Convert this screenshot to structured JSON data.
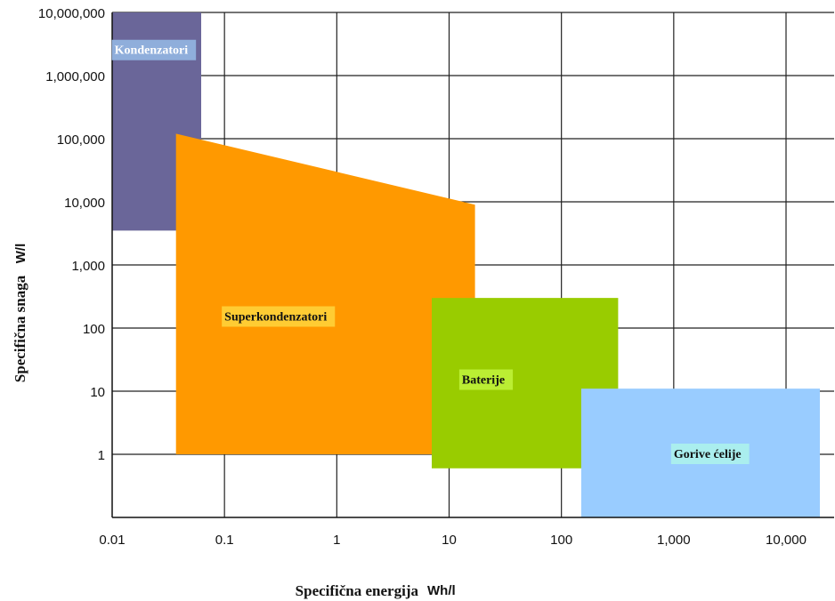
{
  "chart_data": {
    "type": "area",
    "xlabel": "Specifična energija",
    "xunit": "Wh/l",
    "ylabel": "Specifična snaga",
    "yunit": "W/l",
    "xscale": "log",
    "yscale": "log",
    "xlim": [
      0.01,
      10000
    ],
    "ylim": [
      0.1,
      10000000
    ],
    "grid": true,
    "x_ticks": [
      {
        "value": 0.01,
        "label": "0.01"
      },
      {
        "value": 0.1,
        "label": "0.1"
      },
      {
        "value": 1,
        "label": "1"
      },
      {
        "value": 10,
        "label": "10"
      },
      {
        "value": 100,
        "label": "100"
      },
      {
        "value": 1000,
        "label": "1,000"
      },
      {
        "value": 10000,
        "label": "10,000"
      }
    ],
    "y_ticks": [
      {
        "value": 1,
        "label": "1"
      },
      {
        "value": 10,
        "label": "10"
      },
      {
        "value": 100,
        "label": "100"
      },
      {
        "value": 1000,
        "label": "1,000"
      },
      {
        "value": 10000,
        "label": "10,000"
      },
      {
        "value": 100000,
        "label": "100,000"
      },
      {
        "value": 1000000,
        "label": "1,000,000"
      },
      {
        "value": 10000000,
        "label": "10,000,000"
      }
    ],
    "regions": [
      {
        "name": "Kondenzatori",
        "color": "#6a6699",
        "label_bg": "#8faedb",
        "label_color": "#ffffff",
        "polygon": [
          [
            0.01,
            3500
          ],
          [
            0.01,
            10000000
          ],
          [
            0.062,
            10000000
          ],
          [
            0.062,
            3500
          ]
        ],
        "label_at": [
          0.0105,
          2500000
        ]
      },
      {
        "name": "Superkondenzatori",
        "color": "#ff9900",
        "label_bg": "#ffcc33",
        "label_color": "#111111",
        "polygon": [
          [
            0.037,
            1
          ],
          [
            0.037,
            120000
          ],
          [
            17,
            9000
          ],
          [
            17,
            1
          ]
        ],
        "label_at": [
          0.1,
          150
        ]
      },
      {
        "name": "Baterije",
        "color": "#99cc00",
        "label_bg": "#bbee33",
        "label_color": "#111111",
        "polygon": [
          [
            7,
            0.6
          ],
          [
            7,
            300
          ],
          [
            320,
            300
          ],
          [
            320,
            0.6
          ]
        ],
        "label_at": [
          13,
          15
        ]
      },
      {
        "name": "Gorive ćelije",
        "color": "#99ccff",
        "label_bg": "#aaeeee",
        "label_color": "#111111",
        "polygon": [
          [
            150,
            0.1
          ],
          [
            150,
            11
          ],
          [
            20000,
            11
          ],
          [
            20000,
            0.1
          ]
        ],
        "label_at": [
          1000,
          1
        ]
      }
    ]
  }
}
